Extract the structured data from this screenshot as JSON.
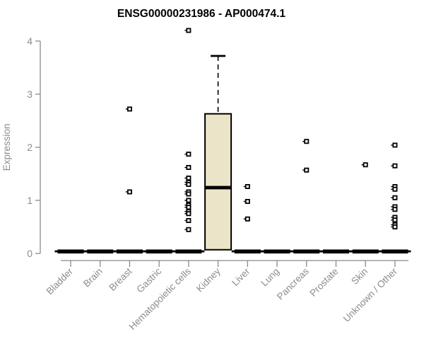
{
  "chart_data": {
    "type": "boxplot",
    "title": "ENSG00000231986 - AP000474.1",
    "ylabel": "Expression",
    "xlabel": "",
    "ylim": [
      0,
      4
    ],
    "yticks": [
      0,
      1,
      2,
      3,
      4
    ],
    "grid": false,
    "legend": null,
    "categories": [
      "Bladder",
      "Brain",
      "Breast",
      "Gastric",
      "Hematopoietic cells",
      "Kidney",
      "Liver",
      "Lung",
      "Pancreas",
      "Prostate",
      "Skin",
      "Unknown / Other"
    ],
    "boxes": [
      {
        "category": "Bladder",
        "q1": 0,
        "median": 0,
        "q3": 0,
        "whisker_low": 0,
        "whisker_high": 0,
        "outliers": []
      },
      {
        "category": "Brain",
        "q1": 0,
        "median": 0,
        "q3": 0,
        "whisker_low": 0,
        "whisker_high": 0,
        "outliers": []
      },
      {
        "category": "Breast",
        "q1": 0,
        "median": 0,
        "q3": 0,
        "whisker_low": 0,
        "whisker_high": 0,
        "outliers": [
          2.72,
          1.16
        ]
      },
      {
        "category": "Gastric",
        "q1": 0,
        "median": 0,
        "q3": 0,
        "whisker_low": 0,
        "whisker_high": 0,
        "outliers": []
      },
      {
        "category": "Hematopoietic cells",
        "q1": 0,
        "median": 0,
        "q3": 0,
        "whisker_low": 0,
        "whisker_high": 0,
        "outliers": [
          4.2,
          1.87,
          1.62,
          1.42,
          1.34,
          1.3,
          1.16,
          1.12,
          1.0,
          0.91,
          0.87,
          0.79,
          0.75,
          0.62,
          0.45
        ]
      },
      {
        "category": "Kidney",
        "q1": 0.07,
        "median": 1.24,
        "q3": 2.63,
        "whisker_low": 0.07,
        "whisker_high": 3.72,
        "outliers": []
      },
      {
        "category": "Liver",
        "q1": 0,
        "median": 0,
        "q3": 0,
        "whisker_low": 0,
        "whisker_high": 0,
        "outliers": [
          1.26,
          0.98,
          0.65
        ]
      },
      {
        "category": "Lung",
        "q1": 0,
        "median": 0,
        "q3": 0,
        "whisker_low": 0,
        "whisker_high": 0,
        "outliers": []
      },
      {
        "category": "Pancreas",
        "q1": 0,
        "median": 0,
        "q3": 0,
        "whisker_low": 0,
        "whisker_high": 0,
        "outliers": [
          2.11,
          1.57
        ]
      },
      {
        "category": "Prostate",
        "q1": 0,
        "median": 0,
        "q3": 0,
        "whisker_low": 0,
        "whisker_high": 0,
        "outliers": []
      },
      {
        "category": "Skin",
        "q1": 0,
        "median": 0,
        "q3": 0,
        "whisker_low": 0,
        "whisker_high": 0,
        "outliers": [
          1.67
        ]
      },
      {
        "category": "Unknown / Other",
        "q1": 0,
        "median": 0,
        "q3": 0,
        "whisker_low": 0,
        "whisker_high": 0,
        "outliers": [
          2.04,
          1.65,
          1.26,
          1.21,
          1.05,
          0.88,
          0.83,
          0.68,
          0.63,
          0.54,
          0.5
        ]
      }
    ],
    "colors": {
      "box_fill": "#EBE4C8",
      "box_stroke": "#000000",
      "median": "#000000",
      "outlier": "#000000",
      "axis": "#8a8a8a",
      "tick_label": "#8c8c8c",
      "title": "#000000"
    }
  }
}
